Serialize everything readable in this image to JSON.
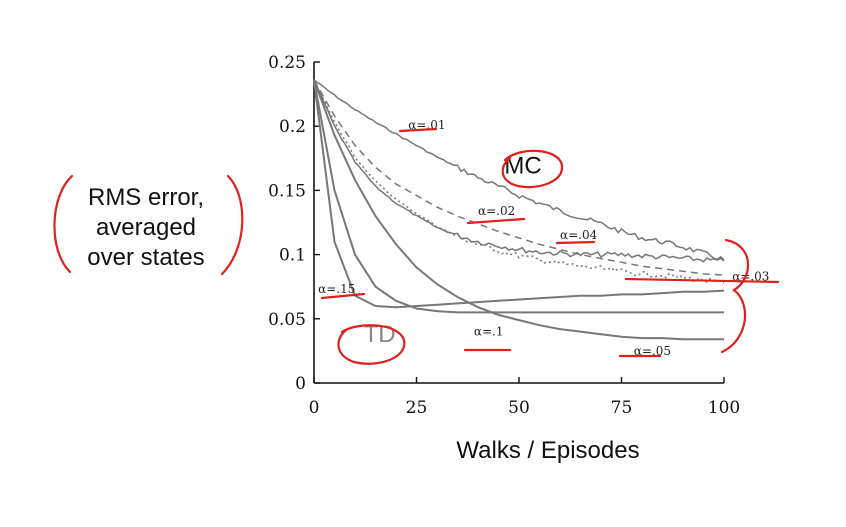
{
  "chart_data": {
    "type": "line",
    "xlabel": "Walks / Episodes",
    "ylabel": "RMS error, averaged over states",
    "xlim": [
      0,
      100
    ],
    "ylim": [
      0,
      0.25
    ],
    "x_ticks": [
      0,
      25,
      50,
      75,
      100
    ],
    "x_tick_labels": [
      "0",
      "25",
      "50",
      "75",
      "100"
    ],
    "y_ticks": [
      0,
      0.05,
      0.1,
      0.15,
      0.2,
      0.25
    ],
    "y_tick_labels": [
      "0",
      "0.05",
      "0.1",
      "0.15",
      "0.2",
      "0.25"
    ],
    "grid": false,
    "x": [
      0,
      5,
      10,
      15,
      20,
      25,
      30,
      35,
      40,
      45,
      50,
      55,
      60,
      65,
      70,
      75,
      80,
      85,
      90,
      95,
      100
    ],
    "series": [
      {
        "name": "α=.01",
        "method": "MC",
        "style": "solid",
        "noisy": true,
        "values": [
          0.236,
          0.224,
          0.213,
          0.203,
          0.194,
          0.185,
          0.176,
          0.168,
          0.16,
          0.153,
          0.146,
          0.14,
          0.134,
          0.129,
          0.124,
          0.118,
          0.113,
          0.11,
          0.106,
          0.101,
          0.096
        ]
      },
      {
        "name": "α=.02",
        "method": "MC",
        "style": "dashed",
        "noisy": false,
        "values": [
          0.236,
          0.208,
          0.185,
          0.168,
          0.155,
          0.146,
          0.137,
          0.13,
          0.124,
          0.118,
          0.113,
          0.108,
          0.104,
          0.1,
          0.097,
          0.094,
          0.091,
          0.089,
          0.087,
          0.085,
          0.084
        ]
      },
      {
        "name": "α=.04",
        "method": "MC",
        "style": "solid",
        "noisy": true,
        "values": [
          0.236,
          0.2,
          0.172,
          0.153,
          0.14,
          0.13,
          0.121,
          0.115,
          0.11,
          0.107,
          0.104,
          0.102,
          0.101,
          0.1,
          0.1,
          0.1,
          0.099,
          0.098,
          0.097,
          0.096,
          0.095
        ]
      },
      {
        "name": "α=.03",
        "method": "MC",
        "style": "dotted",
        "noisy": true,
        "values": [
          0.236,
          0.203,
          0.176,
          0.157,
          0.143,
          0.132,
          0.122,
          0.114,
          0.108,
          0.103,
          0.099,
          0.096,
          0.093,
          0.091,
          0.089,
          0.087,
          0.085,
          0.084,
          0.082,
          0.08,
          0.078
        ]
      },
      {
        "name": "α=.05",
        "method": "TD",
        "style": "solid",
        "noisy": false,
        "values": [
          0.236,
          0.193,
          0.158,
          0.13,
          0.108,
          0.09,
          0.077,
          0.067,
          0.059,
          0.053,
          0.049,
          0.045,
          0.042,
          0.04,
          0.038,
          0.036,
          0.035,
          0.035,
          0.034,
          0.034,
          0.034
        ]
      },
      {
        "name": "α=.1",
        "method": "TD",
        "style": "solid",
        "noisy": false,
        "values": [
          0.236,
          0.15,
          0.1,
          0.075,
          0.064,
          0.058,
          0.056,
          0.055,
          0.055,
          0.055,
          0.055,
          0.055,
          0.055,
          0.055,
          0.055,
          0.055,
          0.055,
          0.055,
          0.055,
          0.055,
          0.055
        ]
      },
      {
        "name": "α=.15",
        "method": "TD",
        "style": "solid",
        "noisy": false,
        "values": [
          0.236,
          0.11,
          0.068,
          0.06,
          0.059,
          0.06,
          0.061,
          0.062,
          0.063,
          0.064,
          0.065,
          0.066,
          0.067,
          0.068,
          0.068,
          0.069,
          0.069,
          0.07,
          0.071,
          0.071,
          0.072
        ]
      }
    ],
    "series_labels": [
      {
        "text": "α=.01",
        "x": 23,
        "y": 0.198
      },
      {
        "text": "α=.02",
        "x": 40,
        "y": 0.131
      },
      {
        "text": "α=.04",
        "x": 60,
        "y": 0.112
      },
      {
        "text": "α=.03",
        "x": 102,
        "y": 0.08
      },
      {
        "text": "α=.15",
        "x": 1,
        "y": 0.07
      },
      {
        "text": "α=.1",
        "x": 39,
        "y": 0.037
      },
      {
        "text": "α=.05",
        "x": 78,
        "y": 0.022
      }
    ],
    "annotations": [
      {
        "text": "MC",
        "x": 51,
        "y": 0.163,
        "color": "#111111"
      },
      {
        "text": "TD",
        "x": 16,
        "y": 0.032,
        "color": "#888888"
      }
    ]
  },
  "colors": {
    "axes": "#111111",
    "series": "#777777",
    "handwriting": "#e0201c"
  }
}
